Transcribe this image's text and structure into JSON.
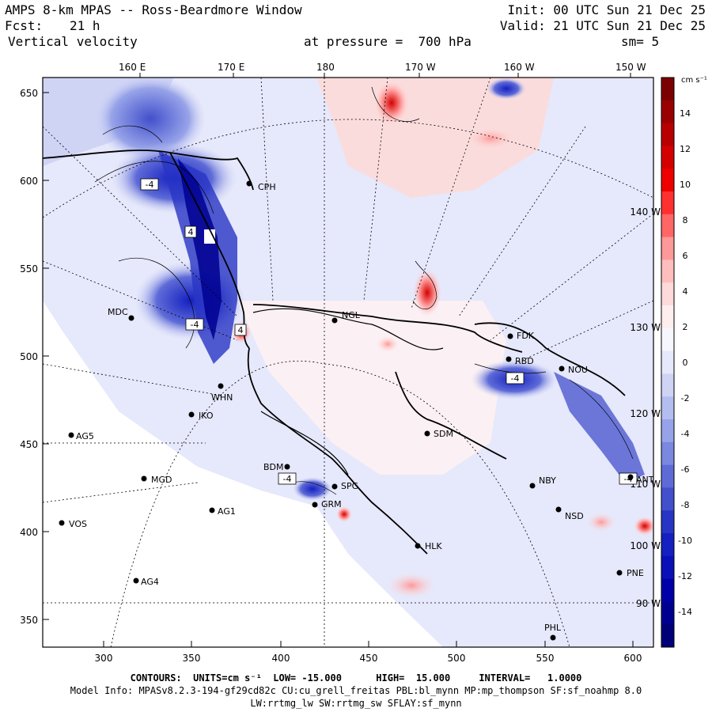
{
  "header": {
    "title": "AMPS 8-km MPAS -- Ross-Beardmore Window",
    "fcst_label": "Fcst:",
    "fcst_value": "21 h",
    "variable": "Vertical velocity",
    "pressure_text": "at pressure =  700 hPa",
    "init": "Init: 00 UTC Sun 21 Dec 25",
    "valid": "Valid: 21 UTC Sun 21 Dec 25",
    "smoothing": "sm= 5"
  },
  "axes": {
    "x_ticks": [
      "300",
      "350",
      "400",
      "450",
      "500",
      "550",
      "600"
    ],
    "y_ticks": [
      "650",
      "600",
      "550",
      "500",
      "450",
      "400",
      "350"
    ],
    "lon_top": [
      "160 E",
      "170 E",
      "180",
      "170 W",
      "160 W",
      "150 W"
    ],
    "lon_right": [
      "140 W",
      "130 W",
      "120 W",
      "110 W",
      "100 W",
      "90 W"
    ]
  },
  "colorbar": {
    "units": "cm s⁻¹",
    "labels": [
      "14",
      "12",
      "10",
      "8",
      "6",
      "4",
      "2",
      "0",
      "-2",
      "-4",
      "-6",
      "-8",
      "-10",
      "-12",
      "-14"
    ],
    "colors": [
      "#7d0000",
      "#9a0000",
      "#b80000",
      "#d40000",
      "#ee0000",
      "#ff3030",
      "#ff6666",
      "#ff9898",
      "#ffbdbd",
      "#ffdada",
      "#ffeeee",
      "#f6f6ff",
      "#e6e8fb",
      "#cfd4f5",
      "#b4bdef",
      "#97a3e8",
      "#7a88e0",
      "#5e6bd7",
      "#4250cc",
      "#2835c4",
      "#1520c0",
      "#0a10b8",
      "#0000a8",
      "#000090",
      "#000078"
    ]
  },
  "stations": [
    {
      "id": "CPH"
    },
    {
      "id": "MDC"
    },
    {
      "id": "NGL"
    },
    {
      "id": "WHN"
    },
    {
      "id": "IKO"
    },
    {
      "id": "AG5"
    },
    {
      "id": "MGD"
    },
    {
      "id": "VOS"
    },
    {
      "id": "AG1"
    },
    {
      "id": "AG4"
    },
    {
      "id": "BDM"
    },
    {
      "id": "SPG"
    },
    {
      "id": "GRM"
    },
    {
      "id": "HLK"
    },
    {
      "id": "SDM"
    },
    {
      "id": "FDK"
    },
    {
      "id": "RBD"
    },
    {
      "id": "NOU"
    },
    {
      "id": "NBY"
    },
    {
      "id": "NSD"
    },
    {
      "id": "PNE"
    },
    {
      "id": "PHL"
    },
    {
      "id": "ANT"
    }
  ],
  "contour_labels": [
    "-4",
    "-4",
    "4",
    "-4",
    "-4",
    "-4",
    "4"
  ],
  "footer": {
    "contours": "CONTOURS:  UNITS=cm s⁻¹  LOW= -15.000      HIGH=  15.000     INTERVAL=   1.0000",
    "model_info": "Model Info: MPASv8.2.3-194-gf29cd82c CU:cu_grell_freitas PBL:bl_mynn MP:mp_thompson SF:sf_noahmp 8.0",
    "model_info2": "LW:rrtmg_lw SW:rrtmg_sw SFLAY:sf_mynn"
  }
}
